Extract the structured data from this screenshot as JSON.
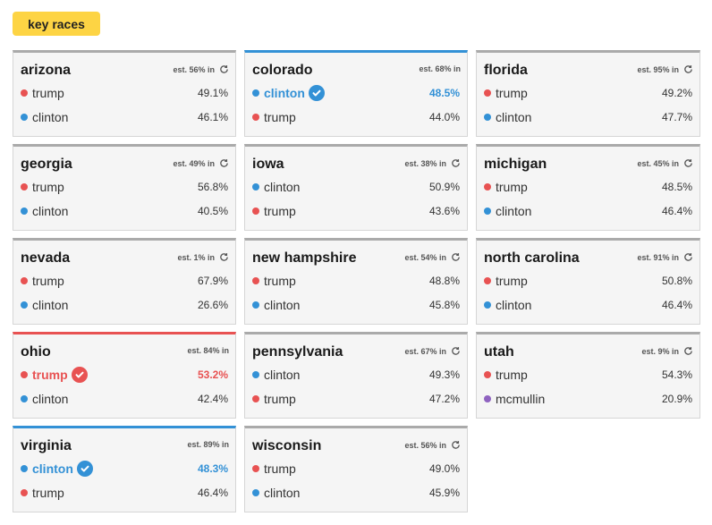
{
  "header": {
    "button_label": "key races"
  },
  "races": [
    {
      "state": "arizona",
      "est": "est. 56% in",
      "refresh": true,
      "winner": null,
      "rows": [
        {
          "cand": "trump",
          "party": "rep",
          "pct": "49.1%"
        },
        {
          "cand": "clinton",
          "party": "dem",
          "pct": "46.1%"
        }
      ]
    },
    {
      "state": "colorado",
      "est": "est. 68% in",
      "refresh": false,
      "winner": "dem",
      "rows": [
        {
          "cand": "clinton",
          "party": "dem",
          "pct": "48.5%"
        },
        {
          "cand": "trump",
          "party": "rep",
          "pct": "44.0%"
        }
      ]
    },
    {
      "state": "florida",
      "est": "est. 95% in",
      "refresh": true,
      "winner": null,
      "rows": [
        {
          "cand": "trump",
          "party": "rep",
          "pct": "49.2%"
        },
        {
          "cand": "clinton",
          "party": "dem",
          "pct": "47.7%"
        }
      ]
    },
    {
      "state": "georgia",
      "est": "est. 49% in",
      "refresh": true,
      "winner": null,
      "rows": [
        {
          "cand": "trump",
          "party": "rep",
          "pct": "56.8%"
        },
        {
          "cand": "clinton",
          "party": "dem",
          "pct": "40.5%"
        }
      ]
    },
    {
      "state": "iowa",
      "est": "est. 38% in",
      "refresh": true,
      "winner": null,
      "rows": [
        {
          "cand": "clinton",
          "party": "dem",
          "pct": "50.9%"
        },
        {
          "cand": "trump",
          "party": "rep",
          "pct": "43.6%"
        }
      ]
    },
    {
      "state": "michigan",
      "est": "est. 45% in",
      "refresh": true,
      "winner": null,
      "rows": [
        {
          "cand": "trump",
          "party": "rep",
          "pct": "48.5%"
        },
        {
          "cand": "clinton",
          "party": "dem",
          "pct": "46.4%"
        }
      ]
    },
    {
      "state": "nevada",
      "est": "est. 1% in",
      "refresh": true,
      "winner": null,
      "rows": [
        {
          "cand": "trump",
          "party": "rep",
          "pct": "67.9%"
        },
        {
          "cand": "clinton",
          "party": "dem",
          "pct": "26.6%"
        }
      ]
    },
    {
      "state": "new hampshire",
      "est": "est. 54% in",
      "refresh": true,
      "winner": null,
      "rows": [
        {
          "cand": "trump",
          "party": "rep",
          "pct": "48.8%"
        },
        {
          "cand": "clinton",
          "party": "dem",
          "pct": "45.8%"
        }
      ]
    },
    {
      "state": "north carolina",
      "est": "est. 91% in",
      "refresh": true,
      "winner": null,
      "rows": [
        {
          "cand": "trump",
          "party": "rep",
          "pct": "50.8%"
        },
        {
          "cand": "clinton",
          "party": "dem",
          "pct": "46.4%"
        }
      ]
    },
    {
      "state": "ohio",
      "est": "est. 84% in",
      "refresh": false,
      "winner": "rep",
      "rows": [
        {
          "cand": "trump",
          "party": "rep",
          "pct": "53.2%"
        },
        {
          "cand": "clinton",
          "party": "dem",
          "pct": "42.4%"
        }
      ]
    },
    {
      "state": "pennsylvania",
      "est": "est. 67% in",
      "refresh": true,
      "winner": null,
      "rows": [
        {
          "cand": "clinton",
          "party": "dem",
          "pct": "49.3%"
        },
        {
          "cand": "trump",
          "party": "rep",
          "pct": "47.2%"
        }
      ]
    },
    {
      "state": "utah",
      "est": "est. 9% in",
      "refresh": true,
      "winner": null,
      "rows": [
        {
          "cand": "trump",
          "party": "rep",
          "pct": "54.3%"
        },
        {
          "cand": "mcmullin",
          "party": "ind",
          "pct": "20.9%"
        }
      ]
    },
    {
      "state": "virginia",
      "est": "est. 89% in",
      "refresh": false,
      "winner": "dem",
      "rows": [
        {
          "cand": "clinton",
          "party": "dem",
          "pct": "48.3%"
        },
        {
          "cand": "trump",
          "party": "rep",
          "pct": "46.4%"
        }
      ]
    },
    {
      "state": "wisconsin",
      "est": "est. 56% in",
      "refresh": true,
      "winner": null,
      "rows": [
        {
          "cand": "trump",
          "party": "rep",
          "pct": "49.0%"
        },
        {
          "cand": "clinton",
          "party": "dem",
          "pct": "45.9%"
        }
      ]
    }
  ],
  "colors": {
    "rep": "#e85252",
    "dem": "#3391d6",
    "ind": "#8f63c0",
    "accent": "#fdd444"
  },
  "icons": {
    "refresh": "refresh-icon",
    "check": "check-circle-icon"
  }
}
